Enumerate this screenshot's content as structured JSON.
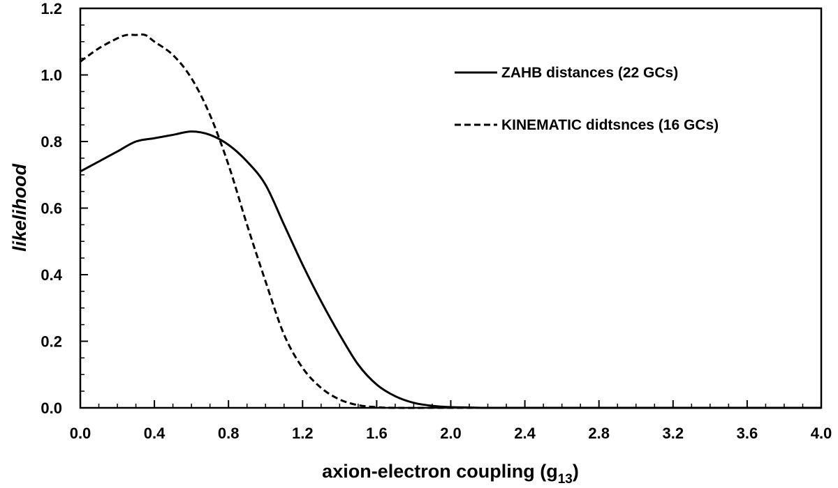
{
  "chart_data": {
    "type": "line",
    "xlabel": "axion-electron coupling (g",
    "xlabel_subscript": "13",
    "xlabel_close": ")",
    "ylabel": "likelihood",
    "xlim": [
      0.0,
      4.0
    ],
    "ylim": [
      0.0,
      1.2
    ],
    "x_ticks": [
      "0.0",
      "0.4",
      "0.8",
      "1.2",
      "1.6",
      "2.0",
      "2.4",
      "2.8",
      "3.2",
      "3.6",
      "4.0"
    ],
    "y_ticks": [
      "0.0",
      "0.2",
      "0.4",
      "0.6",
      "0.8",
      "1.0",
      "1.2"
    ],
    "grid": false,
    "legend_position": "top-right",
    "series": [
      {
        "name": "ZAHB distances (22 GCs)",
        "style": "solid",
        "color": "#000000",
        "x": [
          0.0,
          0.1,
          0.2,
          0.3,
          0.4,
          0.5,
          0.6,
          0.7,
          0.8,
          0.9,
          1.0,
          1.1,
          1.2,
          1.3,
          1.4,
          1.5,
          1.6,
          1.7,
          1.8,
          1.9,
          2.0,
          2.1,
          2.2,
          2.4,
          2.8,
          3.2,
          3.6,
          4.0
        ],
        "y": [
          0.71,
          0.74,
          0.77,
          0.8,
          0.81,
          0.82,
          0.83,
          0.82,
          0.79,
          0.74,
          0.67,
          0.55,
          0.43,
          0.32,
          0.22,
          0.13,
          0.07,
          0.035,
          0.015,
          0.006,
          0.002,
          0.001,
          0.0,
          0.0,
          0.0,
          0.0,
          0.0,
          0.0
        ]
      },
      {
        "name": "KINEMATIC didtsnces (16 GCs)",
        "style": "dashed",
        "color": "#000000",
        "x": [
          0.0,
          0.1,
          0.2,
          0.25,
          0.3,
          0.35,
          0.4,
          0.5,
          0.6,
          0.7,
          0.8,
          0.9,
          1.0,
          1.1,
          1.2,
          1.3,
          1.4,
          1.5,
          1.6,
          1.7,
          2.0,
          2.4,
          2.8,
          3.2,
          3.6,
          4.0
        ],
        "y": [
          1.04,
          1.08,
          1.11,
          1.12,
          1.12,
          1.12,
          1.1,
          1.06,
          0.99,
          0.88,
          0.73,
          0.55,
          0.38,
          0.22,
          0.12,
          0.06,
          0.025,
          0.008,
          0.002,
          0.0,
          0.0,
          0.0,
          0.0,
          0.0,
          0.0,
          0.0
        ]
      }
    ]
  }
}
